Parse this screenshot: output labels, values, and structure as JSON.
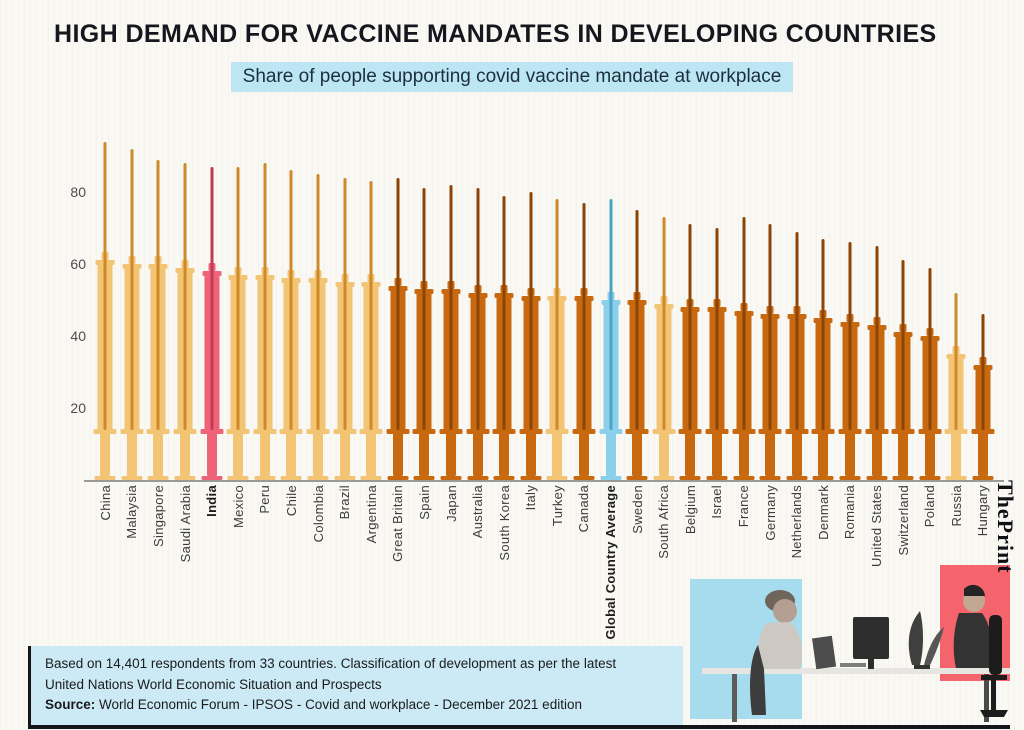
{
  "page": {
    "title": "HIGH DEMAND FOR VACCINE MANDATES IN DEVELOPING COUNTRIES",
    "subtitle": "Share of people supporting covid vaccine mandate at workplace",
    "brand": "ThePrint"
  },
  "footer": {
    "note_line1": "Based on 14,401 respondents from 33 countries. Classification of development as per the latest",
    "note_line2": "United Nations World Economic Situation and Prospects",
    "source_label": "Source:",
    "source_text": " World Economic Forum - IPSOS - Covid and workplace - December 2021 edition"
  },
  "colors": {
    "developing": "#F2C474",
    "developing_shade": "#CE8A28",
    "developed": "#C9690F",
    "developed_shade": "#8C4507",
    "india": "#EF6379",
    "india_shade": "#C13B55",
    "average": "#8AD0EB",
    "average_shade": "#4FA3C7",
    "subtitle_bg": "#BCE6F4",
    "note_bg": "#CBEAF6"
  },
  "chart_data": {
    "type": "bar",
    "title": "HIGH DEMAND FOR VACCINE MANDATES IN DEVELOPING COUNTRIES",
    "subtitle": "Share of people supporting covid vaccine mandate at workplace",
    "xlabel": "",
    "ylabel": "",
    "ylim": [
      0,
      100
    ],
    "yticks": [
      20,
      40,
      60,
      80
    ],
    "grid": false,
    "bar_style": "syringe",
    "color_groups": {
      "developing": "light orange bars",
      "developed": "dark orange bars",
      "india": "pink highlighted bar",
      "average": "blue highlighted bar"
    },
    "bars": [
      {
        "label": "China",
        "value": 61,
        "needle": 94,
        "group": "developing",
        "emphasis": false
      },
      {
        "label": "Malaysia",
        "value": 60,
        "needle": 92,
        "group": "developing",
        "emphasis": false
      },
      {
        "label": "Singapore",
        "value": 60,
        "needle": 89,
        "group": "developing",
        "emphasis": false
      },
      {
        "label": "Saudi Arabia",
        "value": 59,
        "needle": 88,
        "group": "developing",
        "emphasis": false
      },
      {
        "label": "India",
        "value": 58,
        "needle": 87,
        "group": "india",
        "emphasis": true
      },
      {
        "label": "Mexico",
        "value": 57,
        "needle": 87,
        "group": "developing",
        "emphasis": false
      },
      {
        "label": "Peru",
        "value": 57,
        "needle": 88,
        "group": "developing",
        "emphasis": false
      },
      {
        "label": "Chile",
        "value": 56,
        "needle": 86,
        "group": "developing",
        "emphasis": false
      },
      {
        "label": "Colombia",
        "value": 56,
        "needle": 85,
        "group": "developing",
        "emphasis": false
      },
      {
        "label": "Brazil",
        "value": 55,
        "needle": 84,
        "group": "developing",
        "emphasis": false
      },
      {
        "label": "Argentina",
        "value": 55,
        "needle": 83,
        "group": "developing",
        "emphasis": false
      },
      {
        "label": "Great Britain",
        "value": 54,
        "needle": 84,
        "group": "developed",
        "emphasis": false
      },
      {
        "label": "Spain",
        "value": 53,
        "needle": 81,
        "group": "developed",
        "emphasis": false
      },
      {
        "label": "Japan",
        "value": 53,
        "needle": 82,
        "group": "developed",
        "emphasis": false
      },
      {
        "label": "Australia",
        "value": 52,
        "needle": 81,
        "group": "developed",
        "emphasis": false
      },
      {
        "label": "South Korea",
        "value": 52,
        "needle": 79,
        "group": "developed",
        "emphasis": false
      },
      {
        "label": "Italy",
        "value": 51,
        "needle": 80,
        "group": "developed",
        "emphasis": false
      },
      {
        "label": "Turkey",
        "value": 51,
        "needle": 78,
        "group": "developing",
        "emphasis": false
      },
      {
        "label": "Canada",
        "value": 51,
        "needle": 77,
        "group": "developed",
        "emphasis": false
      },
      {
        "label": "Global Country Average",
        "value": 50,
        "needle": 78,
        "group": "average",
        "emphasis": true
      },
      {
        "label": "Sweden",
        "value": 50,
        "needle": 75,
        "group": "developed",
        "emphasis": false
      },
      {
        "label": "South Africa",
        "value": 49,
        "needle": 73,
        "group": "developing",
        "emphasis": false
      },
      {
        "label": "Belgium",
        "value": 48,
        "needle": 71,
        "group": "developed",
        "emphasis": false
      },
      {
        "label": "Israel",
        "value": 48,
        "needle": 70,
        "group": "developed",
        "emphasis": false
      },
      {
        "label": "France",
        "value": 47,
        "needle": 73,
        "group": "developed",
        "emphasis": false
      },
      {
        "label": "Germany",
        "value": 46,
        "needle": 71,
        "group": "developed",
        "emphasis": false
      },
      {
        "label": "Netherlands",
        "value": 46,
        "needle": 69,
        "group": "developed",
        "emphasis": false
      },
      {
        "label": "Denmark",
        "value": 45,
        "needle": 67,
        "group": "developed",
        "emphasis": false
      },
      {
        "label": "Romania",
        "value": 44,
        "needle": 66,
        "group": "developed",
        "emphasis": false
      },
      {
        "label": "United States",
        "value": 43,
        "needle": 65,
        "group": "developed",
        "emphasis": false
      },
      {
        "label": "Switzerland",
        "value": 41,
        "needle": 61,
        "group": "developed",
        "emphasis": false
      },
      {
        "label": "Poland",
        "value": 40,
        "needle": 59,
        "group": "developed",
        "emphasis": false
      },
      {
        "label": "Russia",
        "value": 35,
        "needle": 52,
        "group": "developing",
        "emphasis": false
      },
      {
        "label": "Hungary",
        "value": 32,
        "needle": 46,
        "group": "developed",
        "emphasis": false
      }
    ]
  }
}
